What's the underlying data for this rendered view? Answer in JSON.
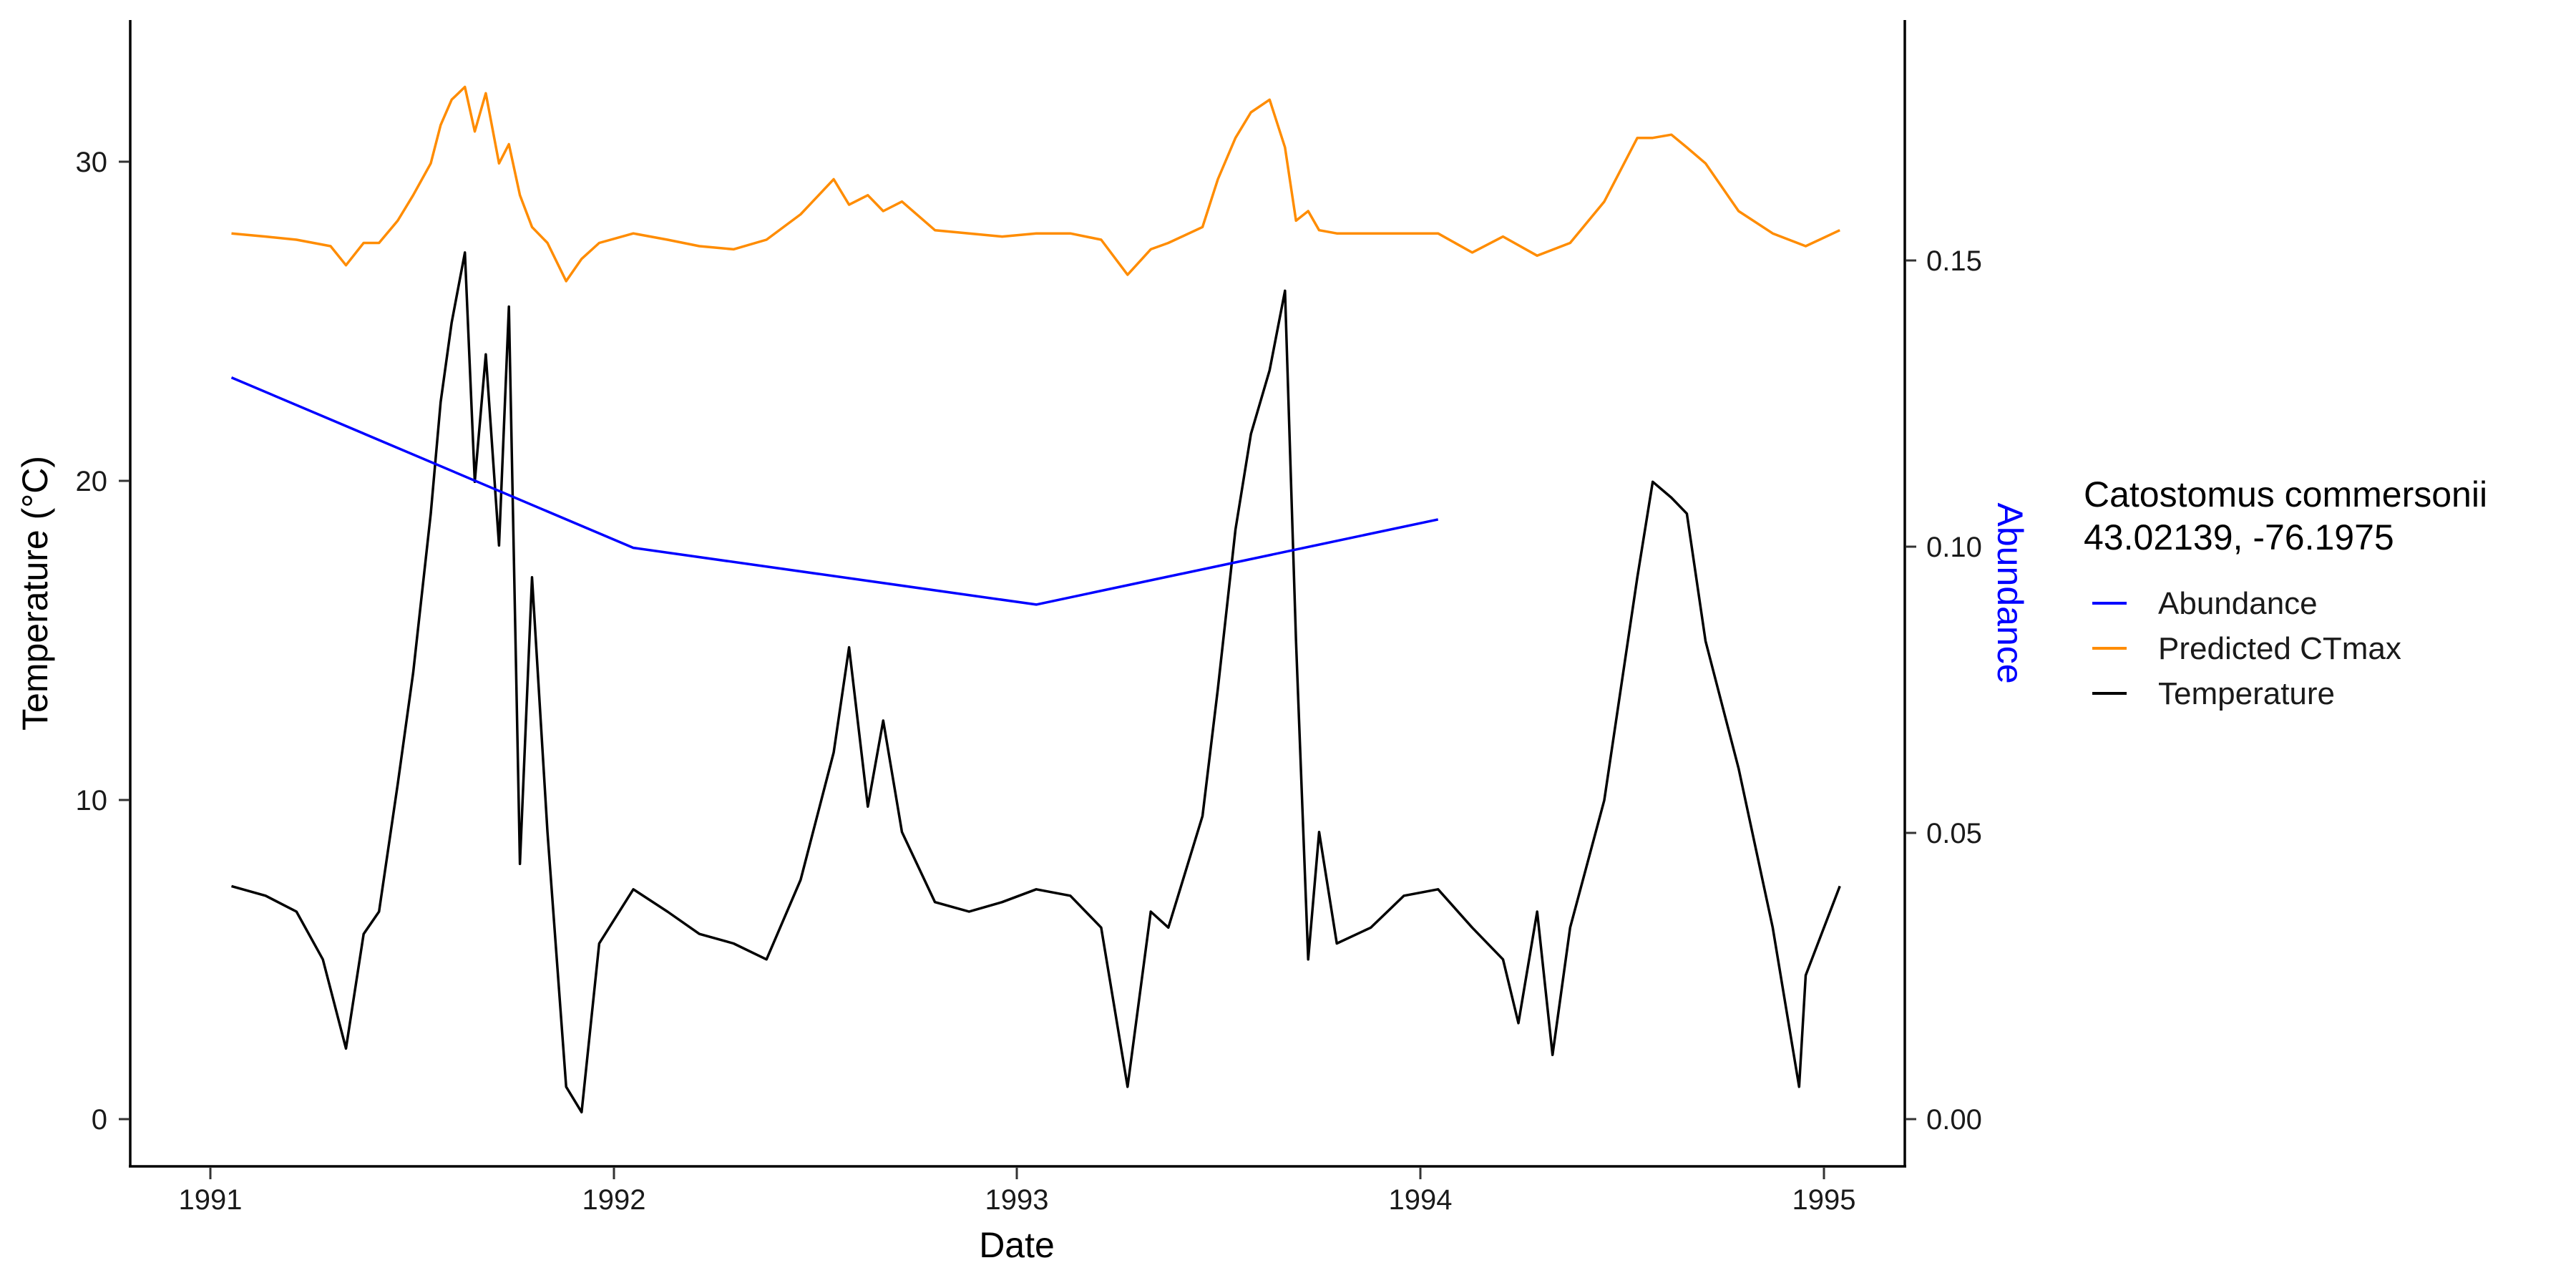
{
  "chart_data": {
    "type": "line",
    "xlabel": "Date",
    "ylabel_left": "Temperature (°C)",
    "ylabel_right": "Abundance",
    "xlim": [
      "1990-10-01",
      "1995-03-01"
    ],
    "ylim_left": [
      -1.5,
      34.5
    ],
    "ylim_right": [
      -0.009,
      0.193
    ],
    "x_ticks": [
      "1991",
      "1992",
      "1993",
      "1994",
      "1995"
    ],
    "y_left_ticks": [
      "0",
      "10",
      "20",
      "30"
    ],
    "y_right_ticks": [
      "0.00",
      "0.05",
      "0.10",
      "0.15"
    ],
    "grid": false,
    "legend": {
      "position": "right",
      "title_line1": "Catostomus commersonii",
      "title_line2": "43.02139, -76.1975",
      "entries": [
        "Abundance",
        "Predicted CTmax",
        "Temperature"
      ]
    },
    "colors": {
      "abundance": "#0000ff",
      "ctmax": "#ff8c00",
      "temperature": "#000000",
      "right_axis_title": "#0000ff"
    },
    "series": [
      {
        "name": "Abundance",
        "axis": "right",
        "x": [
          "1991-01-01",
          "1992-01-01",
          "1993-01-01",
          "1994-01-01"
        ],
        "values": [
          0.13,
          0.1,
          0.09,
          0.105
        ]
      },
      {
        "name": "Predicted CTmax",
        "axis": "left",
        "x": [
          "1991-01-01",
          "1991-02-01",
          "1991-03-01",
          "1991-04-01",
          "1991-04-15",
          "1991-05-01",
          "1991-05-15",
          "1991-06-01",
          "1991-06-15",
          "1991-07-01",
          "1991-07-10",
          "1991-07-20",
          "1991-08-01",
          "1991-08-10",
          "1991-08-20",
          "1991-09-01",
          "1991-09-10",
          "1991-09-20",
          "1991-10-01",
          "1991-10-15",
          "1991-11-01",
          "1991-11-15",
          "1991-12-01",
          "1992-01-01",
          "1992-02-01",
          "1992-03-01",
          "1992-04-01",
          "1992-05-01",
          "1992-06-01",
          "1992-07-01",
          "1992-07-15",
          "1992-08-01",
          "1992-08-15",
          "1992-09-01",
          "1992-10-01",
          "1992-11-01",
          "1992-12-01",
          "1993-01-01",
          "1993-02-01",
          "1993-03-01",
          "1993-03-25",
          "1993-04-15",
          "1993-05-01",
          "1993-06-01",
          "1993-06-15",
          "1993-07-01",
          "1993-07-15",
          "1993-08-01",
          "1993-08-15",
          "1993-08-25",
          "1993-09-05",
          "1993-09-15",
          "1993-10-01",
          "1993-11-01",
          "1993-12-01",
          "1994-01-01",
          "1994-02-01",
          "1994-03-01",
          "1994-04-01",
          "1994-05-01",
          "1994-06-01",
          "1994-07-01",
          "1994-07-15",
          "1994-08-01",
          "1994-08-15",
          "1994-09-01",
          "1994-10-01",
          "1994-11-01",
          "1994-12-01",
          "1995-01-01"
        ],
        "values": [
          27.8,
          27.7,
          27.6,
          27.4,
          26.8,
          27.5,
          27.5,
          28.2,
          29.0,
          30.0,
          31.2,
          32.0,
          32.4,
          31.0,
          32.2,
          30.0,
          30.6,
          29.0,
          28.0,
          27.5,
          26.3,
          27.0,
          27.5,
          27.8,
          27.6,
          27.4,
          27.3,
          27.6,
          28.4,
          29.5,
          28.7,
          29.0,
          28.5,
          28.8,
          27.9,
          27.8,
          27.7,
          27.8,
          27.8,
          27.6,
          26.5,
          27.3,
          27.5,
          28.0,
          29.5,
          30.8,
          31.6,
          32.0,
          30.5,
          28.2,
          28.5,
          27.9,
          27.8,
          27.8,
          27.8,
          27.8,
          27.2,
          27.7,
          27.1,
          27.5,
          28.8,
          30.8,
          30.8,
          30.9,
          30.5,
          30.0,
          28.5,
          27.8,
          27.4,
          27.9
        ]
      },
      {
        "name": "Temperature",
        "axis": "left",
        "x": [
          "1991-01-01",
          "1991-02-01",
          "1991-03-01",
          "1991-03-25",
          "1991-04-15",
          "1991-05-01",
          "1991-05-15",
          "1991-06-01",
          "1991-06-15",
          "1991-07-01",
          "1991-07-10",
          "1991-07-20",
          "1991-08-01",
          "1991-08-10",
          "1991-08-20",
          "1991-09-01",
          "1991-09-10",
          "1991-09-20",
          "1991-10-01",
          "1991-10-15",
          "1991-11-01",
          "1991-11-15",
          "1991-12-01",
          "1992-01-01",
          "1992-02-01",
          "1992-03-01",
          "1992-04-01",
          "1992-05-01",
          "1992-06-01",
          "1992-07-01",
          "1992-07-15",
          "1992-08-01",
          "1992-08-15",
          "1992-09-01",
          "1992-10-01",
          "1992-11-01",
          "1992-12-01",
          "1993-01-01",
          "1993-02-01",
          "1993-03-01",
          "1993-03-25",
          "1993-04-15",
          "1993-05-01",
          "1993-06-01",
          "1993-06-15",
          "1993-07-01",
          "1993-07-15",
          "1993-08-01",
          "1993-08-15",
          "1993-08-25",
          "1993-09-05",
          "1993-09-15",
          "1993-10-01",
          "1993-11-01",
          "1993-12-01",
          "1994-01-01",
          "1994-02-01",
          "1994-03-01",
          "1994-03-15",
          "1994-04-01",
          "1994-04-15",
          "1994-05-01",
          "1994-06-01",
          "1994-07-01",
          "1994-07-15",
          "1994-08-01",
          "1994-08-15",
          "1994-09-01",
          "1994-10-01",
          "1994-11-01",
          "1994-11-25",
          "1994-12-01",
          "1995-01-01"
        ],
        "values": [
          7.3,
          7.0,
          6.5,
          5.0,
          2.2,
          5.8,
          6.5,
          10.5,
          14.0,
          19.0,
          22.5,
          25.0,
          27.2,
          20.0,
          24.0,
          18.0,
          25.5,
          8.0,
          17.0,
          9.0,
          1.0,
          0.2,
          5.5,
          7.2,
          6.5,
          5.8,
          5.5,
          5.0,
          7.5,
          11.5,
          14.8,
          9.8,
          12.5,
          9.0,
          6.8,
          6.5,
          6.8,
          7.2,
          7.0,
          6.0,
          1.0,
          6.5,
          6.0,
          9.5,
          13.5,
          18.5,
          21.5,
          23.5,
          26.0,
          15.0,
          5.0,
          9.0,
          5.5,
          6.0,
          7.0,
          7.2,
          6.0,
          5.0,
          3.0,
          6.5,
          2.0,
          6.0,
          10.0,
          17.0,
          20.0,
          19.5,
          19.0,
          15.0,
          11.0,
          6.0,
          1.0,
          4.5,
          7.3
        ]
      }
    ]
  }
}
